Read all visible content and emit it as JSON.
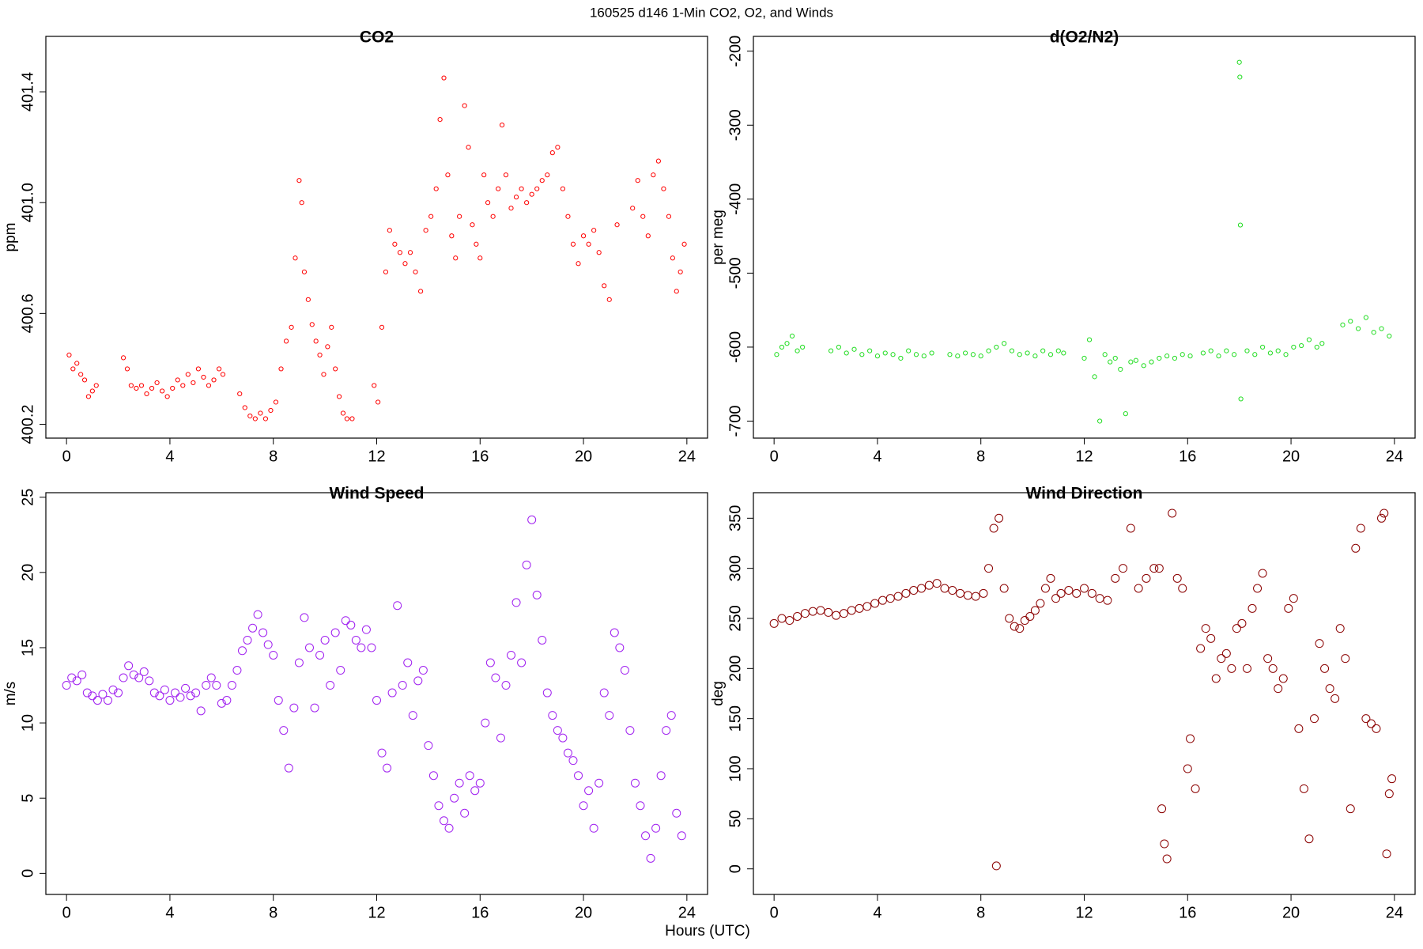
{
  "title": "160525   d146   1-Min CO2, O2, and Winds",
  "x_label": "Hours (UTC)",
  "chart_data": [
    {
      "type": "scatter",
      "title": "CO2",
      "y_label": "ppm",
      "color": "#ff0000",
      "xlim": [
        -0.8,
        24.8
      ],
      "xticks": [
        0,
        4,
        8,
        12,
        16,
        20,
        24
      ],
      "ylim": [
        400.15,
        401.6
      ],
      "yticks": [
        400.2,
        400.6,
        {
          "value": 401,
          "label": "401.0"
        },
        401.4
      ],
      "x": [
        0.1,
        0.25,
        0.4,
        0.55,
        0.7,
        0.85,
        1.0,
        1.15,
        2.2,
        2.35,
        2.5,
        2.7,
        2.9,
        3.1,
        3.3,
        3.5,
        3.7,
        3.9,
        4.1,
        4.3,
        4.5,
        4.7,
        4.9,
        5.1,
        5.3,
        5.5,
        5.7,
        5.9,
        6.05,
        6.7,
        6.9,
        7.1,
        7.3,
        7.5,
        7.7,
        7.9,
        8.1,
        8.3,
        8.5,
        8.7,
        8.85,
        9.0,
        9.1,
        9.2,
        9.35,
        9.5,
        9.65,
        9.8,
        9.95,
        10.1,
        10.25,
        10.4,
        10.55,
        10.7,
        10.85,
        11.05,
        11.9,
        12.05,
        12.2,
        12.35,
        12.5,
        12.7,
        12.9,
        13.1,
        13.3,
        13.5,
        13.7,
        13.9,
        14.1,
        14.3,
        14.45,
        14.6,
        14.75,
        14.9,
        15.05,
        15.2,
        15.4,
        15.55,
        15.7,
        15.85,
        16.0,
        16.15,
        16.3,
        16.5,
        16.7,
        16.85,
        17.0,
        17.2,
        17.4,
        17.6,
        17.8,
        18.0,
        18.2,
        18.4,
        18.6,
        18.8,
        19.0,
        19.2,
        19.4,
        19.6,
        19.8,
        20.0,
        20.2,
        20.4,
        20.6,
        20.8,
        21.0,
        21.3,
        21.9,
        22.1,
        22.3,
        22.5,
        22.7,
        22.9,
        23.1,
        23.3,
        23.45,
        23.6,
        23.75,
        23.9
      ],
      "values": [
        400.45,
        400.4,
        400.42,
        400.38,
        400.36,
        400.3,
        400.32,
        400.34,
        400.44,
        400.4,
        400.34,
        400.33,
        400.34,
        400.31,
        400.33,
        400.35,
        400.32,
        400.3,
        400.33,
        400.36,
        400.34,
        400.38,
        400.35,
        400.4,
        400.37,
        400.34,
        400.36,
        400.4,
        400.38,
        400.31,
        400.26,
        400.23,
        400.22,
        400.24,
        400.22,
        400.25,
        400.28,
        400.4,
        400.5,
        400.55,
        400.8,
        401.08,
        401.0,
        400.75,
        400.65,
        400.56,
        400.5,
        400.45,
        400.38,
        400.48,
        400.55,
        400.4,
        400.3,
        400.24,
        400.22,
        400.22,
        400.34,
        400.28,
        400.55,
        400.75,
        400.9,
        400.85,
        400.82,
        400.78,
        400.82,
        400.75,
        400.68,
        400.9,
        400.95,
        401.05,
        401.3,
        401.45,
        401.1,
        400.88,
        400.8,
        400.95,
        401.35,
        401.2,
        400.92,
        400.85,
        400.8,
        401.1,
        401.0,
        400.95,
        401.05,
        401.28,
        401.1,
        400.98,
        401.02,
        401.05,
        401.0,
        401.03,
        401.05,
        401.08,
        401.1,
        401.18,
        401.2,
        401.05,
        400.95,
        400.85,
        400.78,
        400.88,
        400.85,
        400.9,
        400.82,
        400.7,
        400.65,
        400.92,
        400.98,
        401.08,
        400.95,
        400.88,
        401.1,
        401.15,
        401.05,
        400.95,
        400.8,
        400.68,
        400.75,
        400.85
      ]
    },
    {
      "type": "scatter",
      "title": "d(O2/N2)",
      "y_label": "per meg",
      "color": "#22dd22",
      "xlim": [
        -0.8,
        24.8
      ],
      "xticks": [
        0,
        4,
        8,
        12,
        16,
        20,
        24
      ],
      "ylim": [
        -723,
        -180
      ],
      "yticks": [
        -700,
        -600,
        -500,
        -400,
        -300,
        -200
      ],
      "x": [
        0.1,
        0.3,
        0.5,
        0.7,
        0.9,
        1.1,
        2.2,
        2.5,
        2.8,
        3.1,
        3.4,
        3.7,
        4.0,
        4.3,
        4.6,
        4.9,
        5.2,
        5.5,
        5.8,
        6.1,
        6.8,
        7.1,
        7.4,
        7.7,
        8.0,
        8.3,
        8.6,
        8.9,
        9.2,
        9.5,
        9.8,
        10.1,
        10.4,
        10.7,
        11.0,
        11.2,
        12.0,
        12.2,
        12.4,
        12.6,
        12.8,
        13.0,
        13.2,
        13.4,
        13.6,
        13.8,
        14.0,
        14.3,
        14.6,
        14.9,
        15.2,
        15.5,
        15.8,
        16.1,
        16.6,
        16.9,
        17.2,
        17.5,
        17.8,
        18.0,
        18.02,
        18.04,
        18.06,
        18.3,
        18.6,
        18.9,
        19.2,
        19.5,
        19.8,
        20.1,
        20.4,
        20.7,
        21.0,
        21.2,
        22.0,
        22.3,
        22.6,
        22.9,
        23.2,
        23.5,
        23.8
      ],
      "values": [
        -610,
        -600,
        -595,
        -585,
        -605,
        -600,
        -605,
        -600,
        -608,
        -603,
        -610,
        -605,
        -612,
        -608,
        -610,
        -615,
        -605,
        -610,
        -612,
        -608,
        -610,
        -612,
        -608,
        -610,
        -612,
        -605,
        -600,
        -595,
        -605,
        -610,
        -608,
        -612,
        -605,
        -610,
        -605,
        -608,
        -615,
        -590,
        -640,
        -700,
        -610,
        -620,
        -615,
        -630,
        -690,
        -620,
        -618,
        -625,
        -620,
        -615,
        -612,
        -615,
        -610,
        -612,
        -608,
        -605,
        -612,
        -605,
        -610,
        -215,
        -235,
        -435,
        -670,
        -605,
        -610,
        -600,
        -608,
        -605,
        -610,
        -600,
        -598,
        -590,
        -600,
        -595,
        -570,
        -565,
        -575,
        -560,
        -580,
        -575,
        -585
      ]
    },
    {
      "type": "scatter",
      "title": "Wind Speed",
      "y_label": "m/s",
      "color": "#a020f0",
      "xlim": [
        -0.8,
        24.8
      ],
      "xticks": [
        0,
        4,
        8,
        12,
        16,
        20,
        24
      ],
      "ylim": [
        -1.4,
        25.3
      ],
      "yticks": [
        0,
        5,
        10,
        15,
        20,
        25
      ],
      "x": [
        0.0,
        0.2,
        0.4,
        0.6,
        0.8,
        1.0,
        1.2,
        1.4,
        1.6,
        1.8,
        2.0,
        2.2,
        2.4,
        2.6,
        2.8,
        3.0,
        3.2,
        3.4,
        3.6,
        3.8,
        4.0,
        4.2,
        4.4,
        4.6,
        4.8,
        5.0,
        5.2,
        5.4,
        5.6,
        5.8,
        6.0,
        6.2,
        6.4,
        6.6,
        6.8,
        7.0,
        7.2,
        7.4,
        7.6,
        7.8,
        8.0,
        8.2,
        8.4,
        8.6,
        8.8,
        9.0,
        9.2,
        9.4,
        9.6,
        9.8,
        10.0,
        10.2,
        10.4,
        10.6,
        10.8,
        11.0,
        11.2,
        11.4,
        11.6,
        11.8,
        12.0,
        12.2,
        12.4,
        12.6,
        12.8,
        13.0,
        13.2,
        13.4,
        13.6,
        13.8,
        14.0,
        14.2,
        14.4,
        14.6,
        14.8,
        15.0,
        15.2,
        15.4,
        15.6,
        15.8,
        16.0,
        16.2,
        16.4,
        16.6,
        16.8,
        17.0,
        17.2,
        17.4,
        17.6,
        17.8,
        18.0,
        18.2,
        18.4,
        18.6,
        18.8,
        19.0,
        19.2,
        19.4,
        19.6,
        19.8,
        20.0,
        20.2,
        20.4,
        20.6,
        20.8,
        21.0,
        21.2,
        21.4,
        21.6,
        21.8,
        22.0,
        22.2,
        22.4,
        22.6,
        22.8,
        23.0,
        23.2,
        23.4,
        23.6,
        23.8
      ],
      "values": [
        12.5,
        13,
        12.8,
        13.2,
        12.0,
        11.8,
        11.5,
        11.9,
        11.5,
        12.2,
        12.0,
        13.0,
        13.8,
        13.2,
        13.0,
        13.4,
        12.8,
        12.0,
        11.8,
        12.2,
        11.5,
        12.0,
        11.7,
        12.3,
        11.8,
        12.0,
        10.8,
        12.5,
        13.0,
        12.5,
        11.3,
        11.5,
        12.5,
        13.5,
        14.8,
        15.5,
        16.3,
        17.2,
        16.0,
        15.2,
        14.5,
        11.5,
        9.5,
        7.0,
        11.0,
        14.0,
        17.0,
        15.0,
        11.0,
        14.5,
        15.5,
        12.5,
        16.0,
        13.5,
        16.8,
        16.5,
        15.5,
        15.0,
        16.2,
        15.0,
        11.5,
        8.0,
        7.0,
        12.0,
        17.8,
        12.5,
        14.0,
        10.5,
        12.8,
        13.5,
        8.5,
        6.5,
        4.5,
        3.5,
        3.0,
        5.0,
        6.0,
        4.0,
        6.5,
        5.5,
        6.0,
        10.0,
        14.0,
        13.0,
        9.0,
        12.5,
        14.5,
        18.0,
        14.0,
        20.5,
        23.5,
        18.5,
        15.5,
        12.0,
        10.5,
        9.5,
        9.0,
        8.0,
        7.5,
        6.5,
        4.5,
        5.5,
        3.0,
        6.0,
        12.0,
        10.5,
        16.0,
        15.0,
        13.5,
        9.5,
        6.0,
        4.5,
        2.5,
        1.0,
        3.0,
        6.5,
        9.5,
        10.5,
        4.0,
        2.5
      ]
    },
    {
      "type": "scatter",
      "title": "Wind Direction",
      "y_label": "deg",
      "color": "#8b0000",
      "xlim": [
        -0.8,
        24.8
      ],
      "xticks": [
        0,
        4,
        8,
        12,
        16,
        20,
        24
      ],
      "ylim": [
        -25.5,
        375.5
      ],
      "yticks": [
        0,
        50,
        100,
        150,
        200,
        250,
        300,
        350
      ],
      "x": [
        0.0,
        0.3,
        0.6,
        0.9,
        1.2,
        1.5,
        1.8,
        2.1,
        2.4,
        2.7,
        3.0,
        3.3,
        3.6,
        3.9,
        4.2,
        4.5,
        4.8,
        5.1,
        5.4,
        5.7,
        6.0,
        6.3,
        6.6,
        6.9,
        7.2,
        7.5,
        7.8,
        8.1,
        8.3,
        8.5,
        8.6,
        8.7,
        8.9,
        9.1,
        9.3,
        9.5,
        9.7,
        9.9,
        10.1,
        10.3,
        10.5,
        10.7,
        10.9,
        11.1,
        11.4,
        11.7,
        12.0,
        12.3,
        12.6,
        12.9,
        13.2,
        13.5,
        13.8,
        14.1,
        14.4,
        14.7,
        14.9,
        15.0,
        15.1,
        15.2,
        15.4,
        15.6,
        15.8,
        16.0,
        16.1,
        16.3,
        16.5,
        16.7,
        16.9,
        17.1,
        17.3,
        17.5,
        17.7,
        17.9,
        18.1,
        18.3,
        18.5,
        18.7,
        18.9,
        19.1,
        19.3,
        19.5,
        19.7,
        19.9,
        20.1,
        20.3,
        20.5,
        20.7,
        20.9,
        21.1,
        21.3,
        21.5,
        21.7,
        21.9,
        22.1,
        22.3,
        22.5,
        22.7,
        22.9,
        23.1,
        23.3,
        23.5,
        23.6,
        23.7,
        23.8,
        23.9
      ],
      "values": [
        245,
        250,
        248,
        252,
        255,
        257,
        258,
        256,
        253,
        255,
        258,
        260,
        262,
        265,
        268,
        270,
        272,
        275,
        278,
        280,
        283,
        285,
        280,
        278,
        275,
        273,
        272,
        275,
        300,
        340,
        3,
        350,
        280,
        250,
        242,
        240,
        248,
        252,
        258,
        265,
        280,
        290,
        270,
        275,
        278,
        275,
        280,
        275,
        270,
        268,
        290,
        300,
        340,
        280,
        290,
        300,
        300,
        60,
        25,
        10,
        355,
        290,
        280,
        100,
        130,
        80,
        220,
        240,
        230,
        190,
        210,
        215,
        200,
        240,
        245,
        200,
        260,
        280,
        295,
        210,
        200,
        180,
        190,
        260,
        270,
        140,
        80,
        30,
        150,
        225,
        200,
        180,
        170,
        240,
        210,
        60,
        320,
        340,
        150,
        145,
        140,
        350,
        355,
        15,
        75,
        90
      ]
    }
  ]
}
